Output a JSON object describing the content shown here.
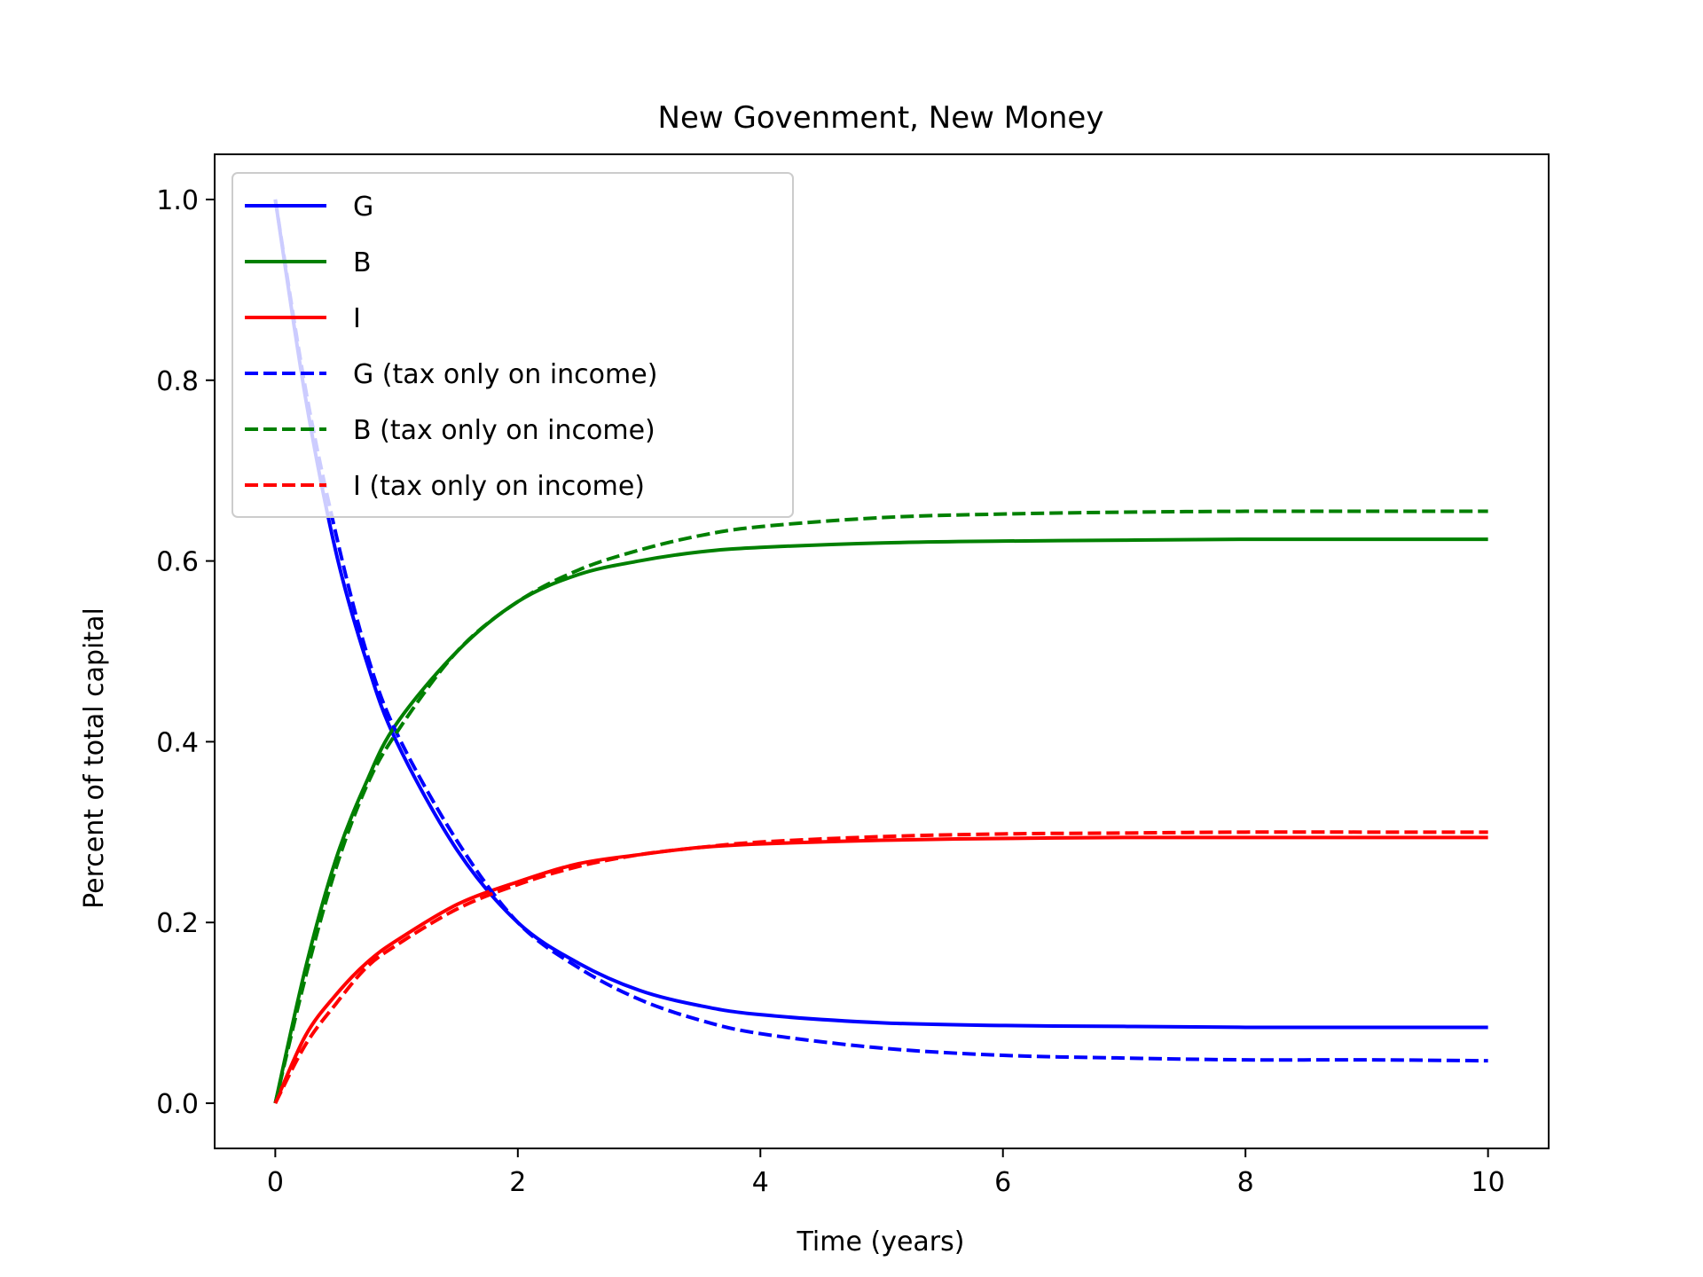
{
  "chart_data": {
    "type": "line",
    "title": "New Govenment, New Money",
    "xlabel": "Time (years)",
    "ylabel": "Percent of total capital",
    "xlim": [
      -0.5,
      10.5
    ],
    "ylim": [
      -0.05,
      1.05
    ],
    "xticks": [
      0,
      2,
      4,
      6,
      8,
      10
    ],
    "xtick_labels": [
      "0",
      "2",
      "4",
      "6",
      "8",
      "10"
    ],
    "yticks": [
      0.0,
      0.2,
      0.4,
      0.6,
      0.8,
      1.0
    ],
    "ytick_labels": [
      "0.0",
      "0.2",
      "0.4",
      "0.6",
      "0.8",
      "1.0"
    ],
    "grid": false,
    "legend_position": "upper-left",
    "x": [
      0,
      0.25,
      0.5,
      0.75,
      1,
      1.5,
      2,
      2.5,
      3,
      3.5,
      4,
      5,
      6,
      7,
      8,
      9,
      10
    ],
    "series": [
      {
        "name": "G",
        "color": "#0000ff",
        "dash": "solid",
        "values": [
          1.0,
          0.78,
          0.61,
          0.49,
          0.4,
          0.28,
          0.2,
          0.155,
          0.125,
          0.108,
          0.098,
          0.089,
          0.086,
          0.085,
          0.084,
          0.084,
          0.084
        ]
      },
      {
        "name": "B",
        "color": "#008000",
        "dash": "solid",
        "values": [
          0.0,
          0.15,
          0.27,
          0.355,
          0.42,
          0.5,
          0.555,
          0.585,
          0.6,
          0.61,
          0.615,
          0.62,
          0.622,
          0.623,
          0.624,
          0.624,
          0.624
        ]
      },
      {
        "name": "I",
        "color": "#ff0000",
        "dash": "solid",
        "values": [
          0.0,
          0.075,
          0.12,
          0.155,
          0.18,
          0.22,
          0.245,
          0.265,
          0.275,
          0.283,
          0.287,
          0.291,
          0.293,
          0.294,
          0.294,
          0.294,
          0.294
        ]
      },
      {
        "name": "G (tax only on income)",
        "color": "#0000ff",
        "dash": "dashed",
        "values": [
          1.0,
          0.79,
          0.63,
          0.5,
          0.41,
          0.29,
          0.2,
          0.15,
          0.115,
          0.092,
          0.077,
          0.061,
          0.053,
          0.05,
          0.048,
          0.048,
          0.047
        ]
      },
      {
        "name": "B (tax only on income)",
        "color": "#008000",
        "dash": "dashed",
        "values": [
          0.0,
          0.14,
          0.26,
          0.35,
          0.41,
          0.5,
          0.555,
          0.59,
          0.612,
          0.628,
          0.638,
          0.648,
          0.652,
          0.654,
          0.655,
          0.655,
          0.655
        ]
      },
      {
        "name": "I (tax only on income)",
        "color": "#ff0000",
        "dash": "dashed",
        "values": [
          0.0,
          0.065,
          0.11,
          0.15,
          0.175,
          0.215,
          0.242,
          0.262,
          0.275,
          0.283,
          0.289,
          0.295,
          0.298,
          0.299,
          0.3,
          0.3,
          0.3
        ]
      }
    ]
  }
}
